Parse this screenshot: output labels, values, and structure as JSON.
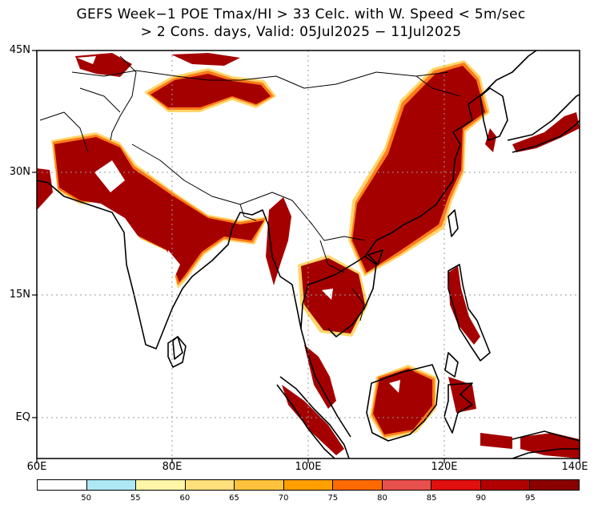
{
  "title": {
    "line1": "GEFS Week−1 POE Tmax/HI > 33 Celc. with W. Speed < 5m/sec",
    "line2": "> 2 Cons. days, Valid: 05Jul2025 − 11Jul2025"
  },
  "axes": {
    "lon_labels": [
      "60E",
      "80E",
      "100E",
      "120E",
      "140E"
    ],
    "lat_labels": [
      "45N",
      "30N",
      "15N",
      "EQ"
    ]
  },
  "colorbar": {
    "labels": [
      "50",
      "55",
      "60",
      "65",
      "70",
      "75",
      "80",
      "85",
      "90",
      "95"
    ],
    "colors": [
      "#ffffff",
      "#aee8f5",
      "#fff6a8",
      "#ffe07a",
      "#ffc23c",
      "#ffa000",
      "#ff6a00",
      "#e8504e",
      "#e01010",
      "#b00000",
      "#8b0000"
    ]
  },
  "map_colors": {
    "probability_fill": "#a50000",
    "edge_orange": "#ff7a1a",
    "edge_yellow": "#ffd25a",
    "coast": "#000000",
    "grid": "#9a9a9a"
  }
}
